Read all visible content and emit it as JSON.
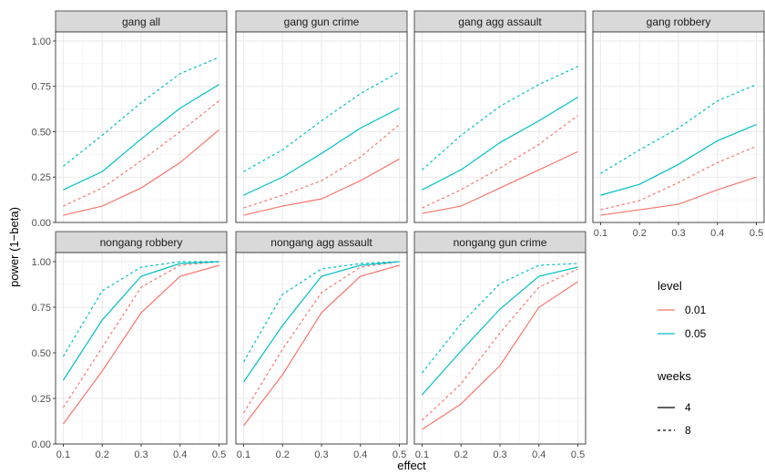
{
  "chart_data": {
    "type": "line",
    "xlabel": "effect",
    "ylabel": "power (1−beta)",
    "x": [
      0.1,
      0.2,
      0.3,
      0.4,
      0.5
    ],
    "x_ticks": [
      "0.1",
      "0.2",
      "0.3",
      "0.4",
      "0.5"
    ],
    "ylim": [
      0,
      1.05
    ],
    "y_ticks": [
      "0.00",
      "0.25",
      "0.50",
      "0.75",
      "1.00"
    ],
    "grid": true,
    "colors": {
      "0.01": "#F8766D",
      "0.05": "#00BFC4"
    },
    "legend": {
      "placement": "right",
      "level_title": "level",
      "level_entries": [
        "0.01",
        "0.05"
      ],
      "weeks_title": "weeks",
      "weeks_entries": [
        "4",
        "8"
      ]
    },
    "panels": [
      {
        "title": "gang all",
        "series": [
          {
            "level": "0.01",
            "weeks": "4",
            "values": [
              0.04,
              0.09,
              0.19,
              0.33,
              0.51
            ]
          },
          {
            "level": "0.01",
            "weeks": "8",
            "values": [
              0.09,
              0.19,
              0.34,
              0.5,
              0.67
            ]
          },
          {
            "level": "0.05",
            "weeks": "4",
            "values": [
              0.18,
              0.28,
              0.46,
              0.63,
              0.76
            ]
          },
          {
            "level": "0.05",
            "weeks": "8",
            "values": [
              0.31,
              0.48,
              0.66,
              0.82,
              0.91
            ]
          }
        ]
      },
      {
        "title": "gang gun crime",
        "series": [
          {
            "level": "0.01",
            "weeks": "4",
            "values": [
              0.04,
              0.09,
              0.13,
              0.23,
              0.35
            ]
          },
          {
            "level": "0.01",
            "weeks": "8",
            "values": [
              0.08,
              0.15,
              0.23,
              0.36,
              0.54
            ]
          },
          {
            "level": "0.05",
            "weeks": "4",
            "values": [
              0.15,
              0.25,
              0.38,
              0.52,
              0.63
            ]
          },
          {
            "level": "0.05",
            "weeks": "8",
            "values": [
              0.28,
              0.4,
              0.56,
              0.71,
              0.83
            ]
          }
        ]
      },
      {
        "title": "gang agg assault",
        "series": [
          {
            "level": "0.01",
            "weeks": "4",
            "values": [
              0.05,
              0.09,
              0.19,
              0.29,
              0.39
            ]
          },
          {
            "level": "0.01",
            "weeks": "8",
            "values": [
              0.08,
              0.18,
              0.3,
              0.43,
              0.59
            ]
          },
          {
            "level": "0.05",
            "weeks": "4",
            "values": [
              0.18,
              0.29,
              0.44,
              0.56,
              0.69
            ]
          },
          {
            "level": "0.05",
            "weeks": "8",
            "values": [
              0.29,
              0.48,
              0.64,
              0.76,
              0.86
            ]
          }
        ]
      },
      {
        "title": "gang robbery",
        "series": [
          {
            "level": "0.01",
            "weeks": "4",
            "values": [
              0.04,
              0.07,
              0.1,
              0.18,
              0.25
            ]
          },
          {
            "level": "0.01",
            "weeks": "8",
            "values": [
              0.07,
              0.12,
              0.22,
              0.33,
              0.42
            ]
          },
          {
            "level": "0.05",
            "weeks": "4",
            "values": [
              0.15,
              0.21,
              0.32,
              0.45,
              0.54
            ]
          },
          {
            "level": "0.05",
            "weeks": "8",
            "values": [
              0.27,
              0.4,
              0.52,
              0.67,
              0.76
            ]
          }
        ]
      },
      {
        "title": "nongang robbery",
        "series": [
          {
            "level": "0.01",
            "weeks": "4",
            "values": [
              0.11,
              0.4,
              0.72,
              0.92,
              0.98
            ]
          },
          {
            "level": "0.01",
            "weeks": "8",
            "values": [
              0.2,
              0.53,
              0.86,
              0.98,
              1.0
            ]
          },
          {
            "level": "0.05",
            "weeks": "4",
            "values": [
              0.35,
              0.68,
              0.92,
              0.99,
              1.0
            ]
          },
          {
            "level": "0.05",
            "weeks": "8",
            "values": [
              0.48,
              0.84,
              0.97,
              1.0,
              1.0
            ]
          }
        ]
      },
      {
        "title": "nongang agg assault",
        "series": [
          {
            "level": "0.01",
            "weeks": "4",
            "values": [
              0.1,
              0.38,
              0.72,
              0.92,
              0.98
            ]
          },
          {
            "level": "0.01",
            "weeks": "8",
            "values": [
              0.17,
              0.52,
              0.83,
              0.97,
              1.0
            ]
          },
          {
            "level": "0.05",
            "weeks": "4",
            "values": [
              0.34,
              0.65,
              0.92,
              0.98,
              1.0
            ]
          },
          {
            "level": "0.05",
            "weeks": "8",
            "values": [
              0.45,
              0.82,
              0.96,
              0.99,
              1.0
            ]
          }
        ]
      },
      {
        "title": "nongang gun crime",
        "series": [
          {
            "level": "0.01",
            "weeks": "4",
            "values": [
              0.08,
              0.22,
              0.43,
              0.75,
              0.89
            ]
          },
          {
            "level": "0.01",
            "weeks": "8",
            "values": [
              0.13,
              0.33,
              0.61,
              0.86,
              0.96
            ]
          },
          {
            "level": "0.05",
            "weeks": "4",
            "values": [
              0.27,
              0.51,
              0.74,
              0.92,
              0.97
            ]
          },
          {
            "level": "0.05",
            "weeks": "8",
            "values": [
              0.39,
              0.66,
              0.88,
              0.98,
              0.99
            ]
          }
        ]
      }
    ]
  }
}
